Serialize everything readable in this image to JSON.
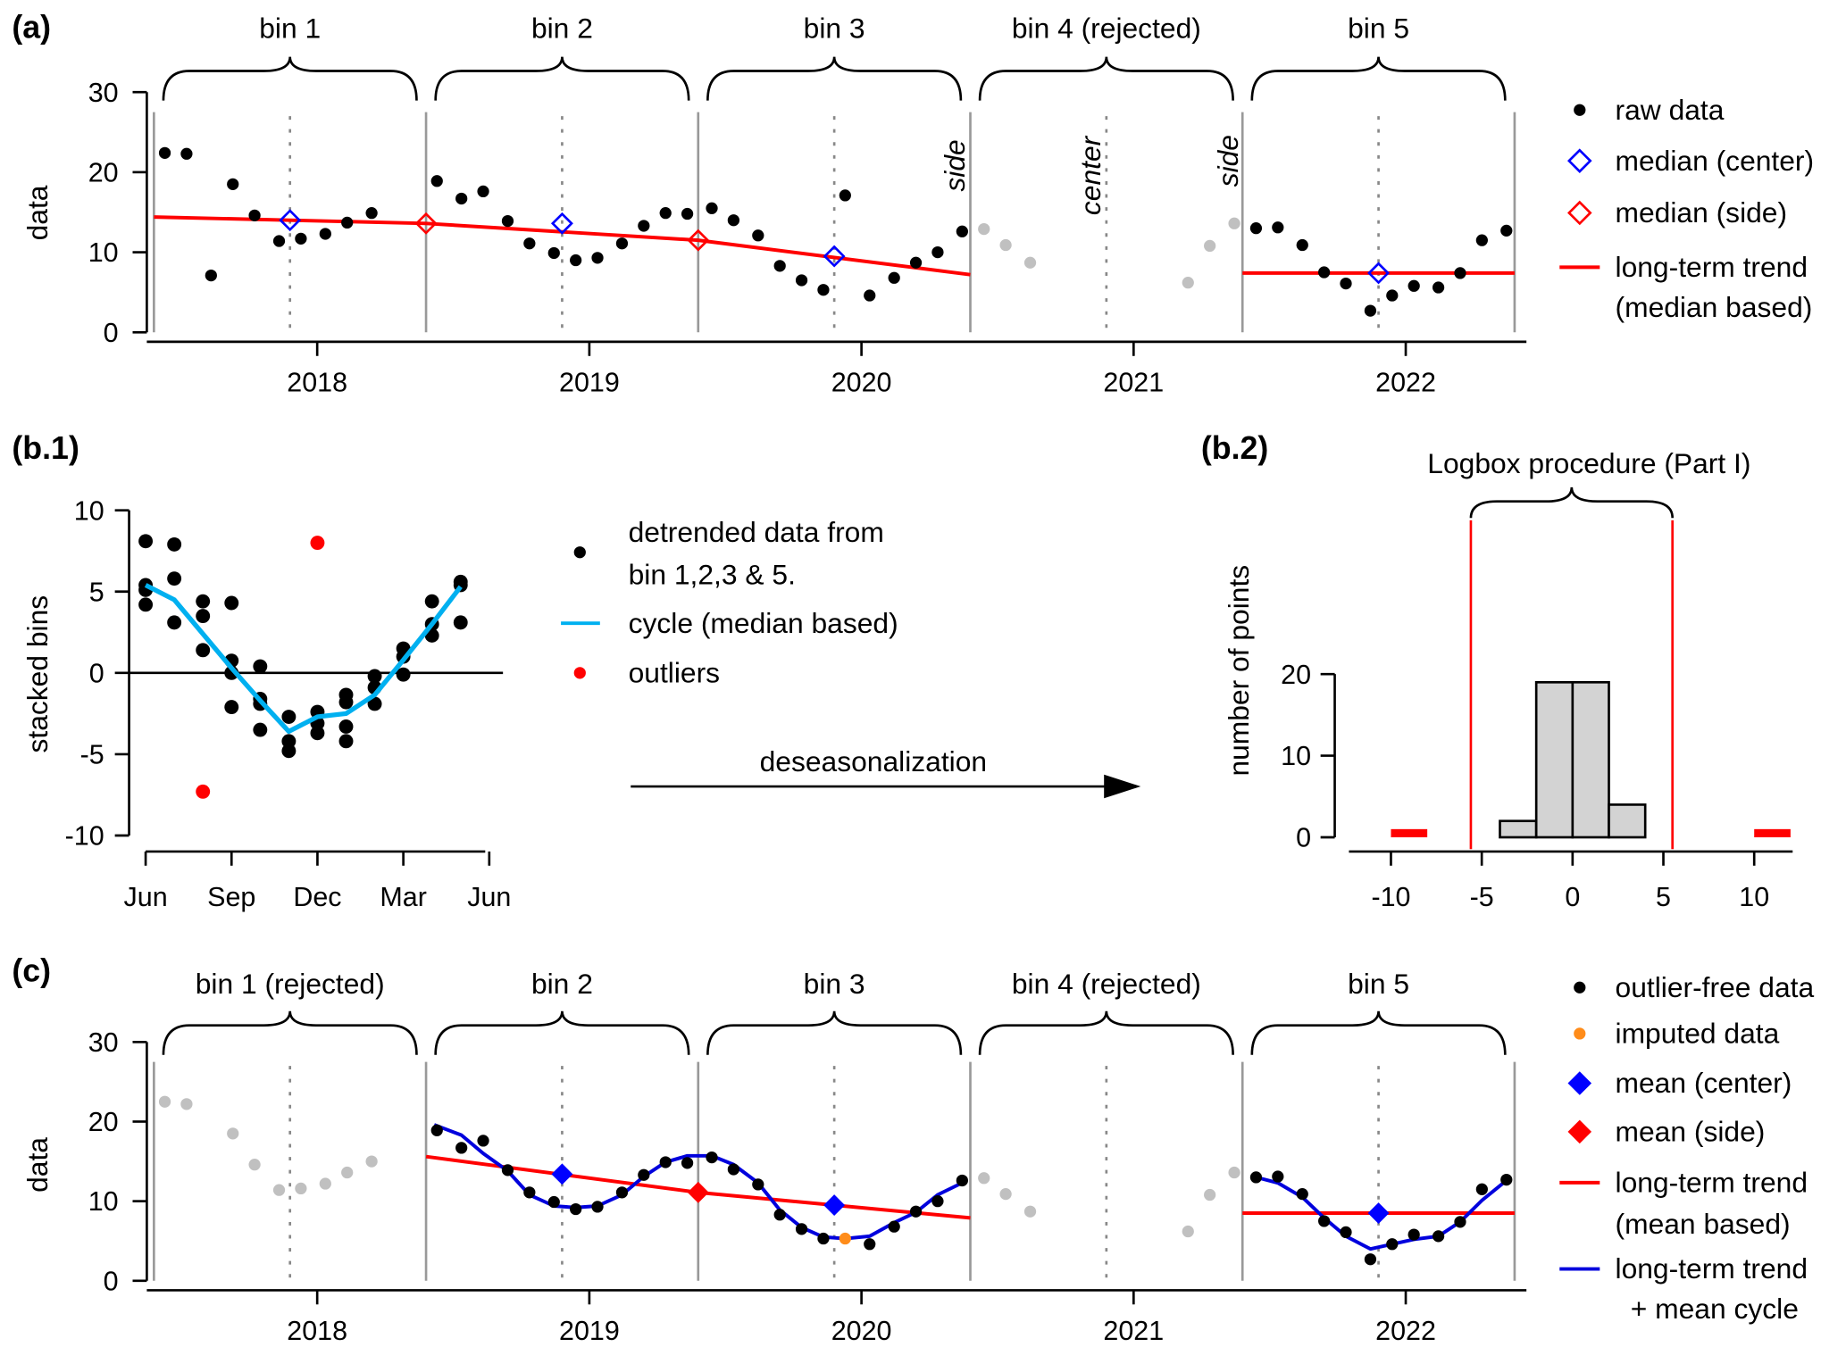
{
  "chart_data": {
    "panel_labels": {
      "a": "(a)",
      "b1": "(b.1)",
      "b2": "(b.2)",
      "c": "(c)"
    },
    "panel_a": {
      "type": "scatter",
      "ylabel": "data",
      "ylim": [
        0,
        30
      ],
      "yticks": [
        "0",
        "10",
        "20",
        "30"
      ],
      "xticks": [
        "2018",
        "2019",
        "2020",
        "2021",
        "2022"
      ],
      "bin_labels": [
        "bin 1",
        "bin 2",
        "bin 3",
        "bin 4 (rejected)",
        "bin 5"
      ],
      "bin_edges": [
        2017.4,
        2018.4,
        2019.4,
        2020.4,
        2021.4,
        2022.4
      ],
      "bin_annotations": {
        "side_left": "side",
        "center": "center",
        "side_right": "side"
      },
      "raw_points": [
        [
          2017.44,
          22.4
        ],
        [
          2017.52,
          22.3
        ],
        [
          2017.61,
          7.1
        ],
        [
          2017.69,
          18.5
        ],
        [
          2017.77,
          14.6
        ],
        [
          2017.86,
          11.4
        ],
        [
          2017.94,
          11.7
        ],
        [
          2018.03,
          12.3
        ],
        [
          2018.11,
          13.7
        ],
        [
          2018.2,
          14.9
        ],
        [
          2018.44,
          18.9
        ],
        [
          2018.53,
          16.7
        ],
        [
          2018.61,
          17.6
        ],
        [
          2018.7,
          13.9
        ],
        [
          2018.78,
          11.1
        ],
        [
          2018.87,
          9.9
        ],
        [
          2018.95,
          9.0
        ],
        [
          2019.03,
          9.3
        ],
        [
          2019.12,
          11.1
        ],
        [
          2019.2,
          13.3
        ],
        [
          2019.28,
          14.9
        ],
        [
          2019.36,
          14.8
        ],
        [
          2019.45,
          15.5
        ],
        [
          2019.53,
          14.0
        ],
        [
          2019.62,
          12.1
        ],
        [
          2019.7,
          8.3
        ],
        [
          2019.78,
          6.5
        ],
        [
          2019.86,
          5.3
        ],
        [
          2019.94,
          17.1
        ],
        [
          2020.03,
          4.6
        ],
        [
          2020.12,
          6.8
        ],
        [
          2020.2,
          8.7
        ],
        [
          2020.28,
          10.0
        ],
        [
          2020.37,
          12.6
        ],
        [
          2021.45,
          13.0
        ],
        [
          2021.53,
          13.1
        ],
        [
          2021.62,
          10.9
        ],
        [
          2021.7,
          7.5
        ],
        [
          2021.78,
          6.1
        ],
        [
          2021.87,
          2.7
        ],
        [
          2021.95,
          4.6
        ],
        [
          2022.03,
          5.8
        ],
        [
          2022.12,
          5.6
        ],
        [
          2022.2,
          7.4
        ],
        [
          2022.28,
          11.5
        ],
        [
          2022.37,
          12.7
        ]
      ],
      "rejected_points": [
        [
          2020.45,
          12.9
        ],
        [
          2020.53,
          10.9
        ],
        [
          2020.62,
          8.7
        ],
        [
          2021.2,
          6.2
        ],
        [
          2021.28,
          10.8
        ],
        [
          2021.37,
          13.6
        ]
      ],
      "median_center": [
        [
          2017.9,
          14.0
        ],
        [
          2018.9,
          13.6
        ],
        [
          2019.9,
          9.5
        ],
        [
          2021.9,
          7.4
        ]
      ],
      "median_side": [
        [
          2018.4,
          13.6
        ],
        [
          2019.4,
          11.5
        ]
      ],
      "trend_segments": [
        [
          [
            2017.4,
            14.4
          ],
          [
            2018.4,
            13.6
          ],
          [
            2019.4,
            11.5
          ],
          [
            2020.4,
            7.2
          ]
        ],
        [
          [
            2021.4,
            7.4
          ],
          [
            2022.4,
            7.4
          ]
        ]
      ],
      "legend": [
        "raw data",
        "median (center)",
        "median (side)",
        "long-term trend",
        "(median based)"
      ],
      "colors": {
        "raw": "#000000",
        "rejected": "#c0c0c0",
        "center": "#0000ff",
        "side": "#ff0000",
        "trend": "#ff0000"
      }
    },
    "panel_b1": {
      "type": "scatter",
      "ylabel": "stacked bins",
      "ylim": [
        -10,
        10
      ],
      "yticks": [
        "-10",
        "-5",
        "0",
        "5",
        "10"
      ],
      "xticks": [
        "Jun",
        "Sep",
        "Dec",
        "Mar",
        "Jun"
      ],
      "points_by_month": [
        [
          8.1,
          5.4,
          5.1,
          4.2
        ],
        [
          7.9,
          5.8,
          3.1
        ],
        [
          4.4,
          3.5,
          1.4
        ],
        [
          4.3,
          0.75,
          0.0,
          -2.1
        ],
        [
          0.4,
          -1.6,
          -1.9,
          -3.5
        ],
        [
          -2.7,
          -4.2,
          -4.8
        ],
        [
          -2.4,
          -3.1,
          -3.7
        ],
        [
          -1.35,
          -1.8,
          -3.3,
          -4.2
        ],
        [
          -0.2,
          -0.9,
          -1.9
        ],
        [
          1.5,
          1.0,
          -0.1
        ],
        [
          4.4,
          3.0,
          2.3
        ],
        [
          5.6,
          5.4,
          3.1
        ]
      ],
      "outliers": [
        [
          2,
          -7.3
        ],
        [
          6,
          8.0
        ]
      ],
      "cycle": [
        5.4,
        4.5,
        2.4,
        0.3,
        -1.7,
        -3.6,
        -2.7,
        -2.5,
        -1.35,
        0.8,
        3.0,
        5.3
      ],
      "legend": [
        "detrended data from",
        "bin 1,2,3 & 5.",
        "cycle (median based)",
        "outliers"
      ],
      "arrow_label": "deseasonalization",
      "colors": {
        "points": "#000000",
        "cycle": "#00b0f0",
        "outliers": "#ff0000"
      }
    },
    "panel_b2": {
      "type": "bar",
      "title": "Logbox procedure (Part I)",
      "ylabel": "number of points",
      "ylim": [
        0,
        20
      ],
      "xlim": [
        -12,
        12
      ],
      "yticks": [
        "0",
        "10",
        "20"
      ],
      "xticks": [
        "-10",
        "-5",
        "0",
        "5",
        "10"
      ],
      "bins": [
        {
          "from": -4,
          "to": -2,
          "count": 2
        },
        {
          "from": -2,
          "to": 0,
          "count": 19
        },
        {
          "from": 0,
          "to": 2,
          "count": 19
        },
        {
          "from": 2,
          "to": 4,
          "count": 4
        }
      ],
      "outlier_bins": [
        {
          "from": -10,
          "to": -8,
          "count": 1
        },
        {
          "from": 10,
          "to": 12,
          "count": 1
        }
      ],
      "limits": [
        -5.6,
        5.5
      ],
      "colors": {
        "bar": "#d3d3d3",
        "outlier": "#ff0000",
        "limit": "#ff0000"
      }
    },
    "panel_c": {
      "type": "scatter",
      "ylabel": "data",
      "ylim": [
        0,
        30
      ],
      "yticks": [
        "0",
        "10",
        "20",
        "30"
      ],
      "xticks": [
        "2018",
        "2019",
        "2020",
        "2021",
        "2022"
      ],
      "bin_labels": [
        "bin 1 (rejected)",
        "bin 2",
        "bin 3",
        "bin 4 (rejected)",
        "bin 5"
      ],
      "bin_edges": [
        2017.4,
        2018.4,
        2019.4,
        2020.4,
        2021.4,
        2022.4
      ],
      "outlier_free_points": [
        [
          2018.44,
          18.9
        ],
        [
          2018.53,
          16.7
        ],
        [
          2018.61,
          17.6
        ],
        [
          2018.7,
          13.9
        ],
        [
          2018.78,
          11.1
        ],
        [
          2018.87,
          9.9
        ],
        [
          2018.95,
          9.0
        ],
        [
          2019.03,
          9.3
        ],
        [
          2019.12,
          11.1
        ],
        [
          2019.2,
          13.3
        ],
        [
          2019.28,
          14.9
        ],
        [
          2019.36,
          14.8
        ],
        [
          2019.45,
          15.5
        ],
        [
          2019.53,
          14.0
        ],
        [
          2019.62,
          12.1
        ],
        [
          2019.7,
          8.3
        ],
        [
          2019.78,
          6.5
        ],
        [
          2019.86,
          5.3
        ],
        [
          2020.03,
          4.6
        ],
        [
          2020.12,
          6.8
        ],
        [
          2020.2,
          8.7
        ],
        [
          2020.28,
          10.0
        ],
        [
          2020.37,
          12.6
        ],
        [
          2021.45,
          13.0
        ],
        [
          2021.53,
          13.1
        ],
        [
          2021.62,
          10.9
        ],
        [
          2021.7,
          7.5
        ],
        [
          2021.78,
          6.1
        ],
        [
          2021.87,
          2.7
        ],
        [
          2021.95,
          4.6
        ],
        [
          2022.03,
          5.8
        ],
        [
          2022.12,
          5.6
        ],
        [
          2022.2,
          7.4
        ],
        [
          2022.28,
          11.5
        ],
        [
          2022.37,
          12.7
        ]
      ],
      "rejected_points": [
        [
          2017.44,
          22.5
        ],
        [
          2017.52,
          22.2
        ],
        [
          2017.69,
          18.5
        ],
        [
          2017.77,
          14.6
        ],
        [
          2017.86,
          11.4
        ],
        [
          2017.94,
          11.6
        ],
        [
          2018.03,
          12.2
        ],
        [
          2018.11,
          13.6
        ],
        [
          2018.2,
          15.0
        ],
        [
          2020.45,
          12.9
        ],
        [
          2020.53,
          10.9
        ],
        [
          2020.62,
          8.7
        ],
        [
          2021.2,
          6.2
        ],
        [
          2021.28,
          10.8
        ],
        [
          2021.37,
          13.6
        ]
      ],
      "imputed_points": [
        [
          2019.94,
          5.3
        ]
      ],
      "mean_center": [
        [
          2018.9,
          13.4
        ],
        [
          2019.9,
          9.5
        ],
        [
          2021.9,
          8.5
        ]
      ],
      "mean_side": [
        [
          2019.4,
          11.1
        ]
      ],
      "trend_segments": [
        [
          [
            2018.4,
            15.6
          ],
          [
            2019.4,
            11.1
          ],
          [
            2020.4,
            7.9
          ]
        ],
        [
          [
            2021.4,
            8.5
          ],
          [
            2022.4,
            8.5
          ]
        ]
      ],
      "trend_plus_cycle": [
        {
          "x": [
            2018.43,
            2018.53,
            2018.61,
            2018.7,
            2018.78,
            2018.87,
            2018.95,
            2019.03,
            2019.12,
            2019.2,
            2019.28,
            2019.36,
            2019.45,
            2019.53,
            2019.62,
            2019.7,
            2019.78,
            2019.86,
            2019.94,
            2020.03,
            2020.12,
            2020.2,
            2020.28,
            2020.37
          ],
          "y": [
            19.6,
            18.3,
            16.0,
            13.8,
            10.8,
            9.4,
            9.2,
            9.4,
            10.8,
            13.1,
            14.9,
            15.7,
            15.7,
            14.6,
            12.3,
            8.9,
            6.7,
            5.5,
            5.3,
            5.6,
            7.3,
            8.6,
            10.8,
            12.3
          ]
        },
        {
          "x": [
            2021.44,
            2021.53,
            2021.62,
            2021.7,
            2021.78,
            2021.87,
            2021.95,
            2022.03,
            2022.12,
            2022.2,
            2022.28,
            2022.37
          ],
          "y": [
            13.1,
            12.3,
            10.5,
            7.9,
            5.6,
            4.0,
            4.6,
            5.2,
            5.6,
            7.4,
            10.1,
            12.6
          ]
        }
      ],
      "legend": [
        "outlier-free data",
        "imputed data",
        "mean (center)",
        "mean (side)",
        "long-term trend",
        "(mean based)",
        "long-term trend",
        "+ mean cycle"
      ],
      "colors": {
        "points": "#000000",
        "rejected": "#c0c0c0",
        "imputed": "#ff8c1a",
        "center": "#0000ff",
        "side": "#ff0000",
        "trend": "#ff0000",
        "cycle": "#0000dd"
      }
    }
  }
}
